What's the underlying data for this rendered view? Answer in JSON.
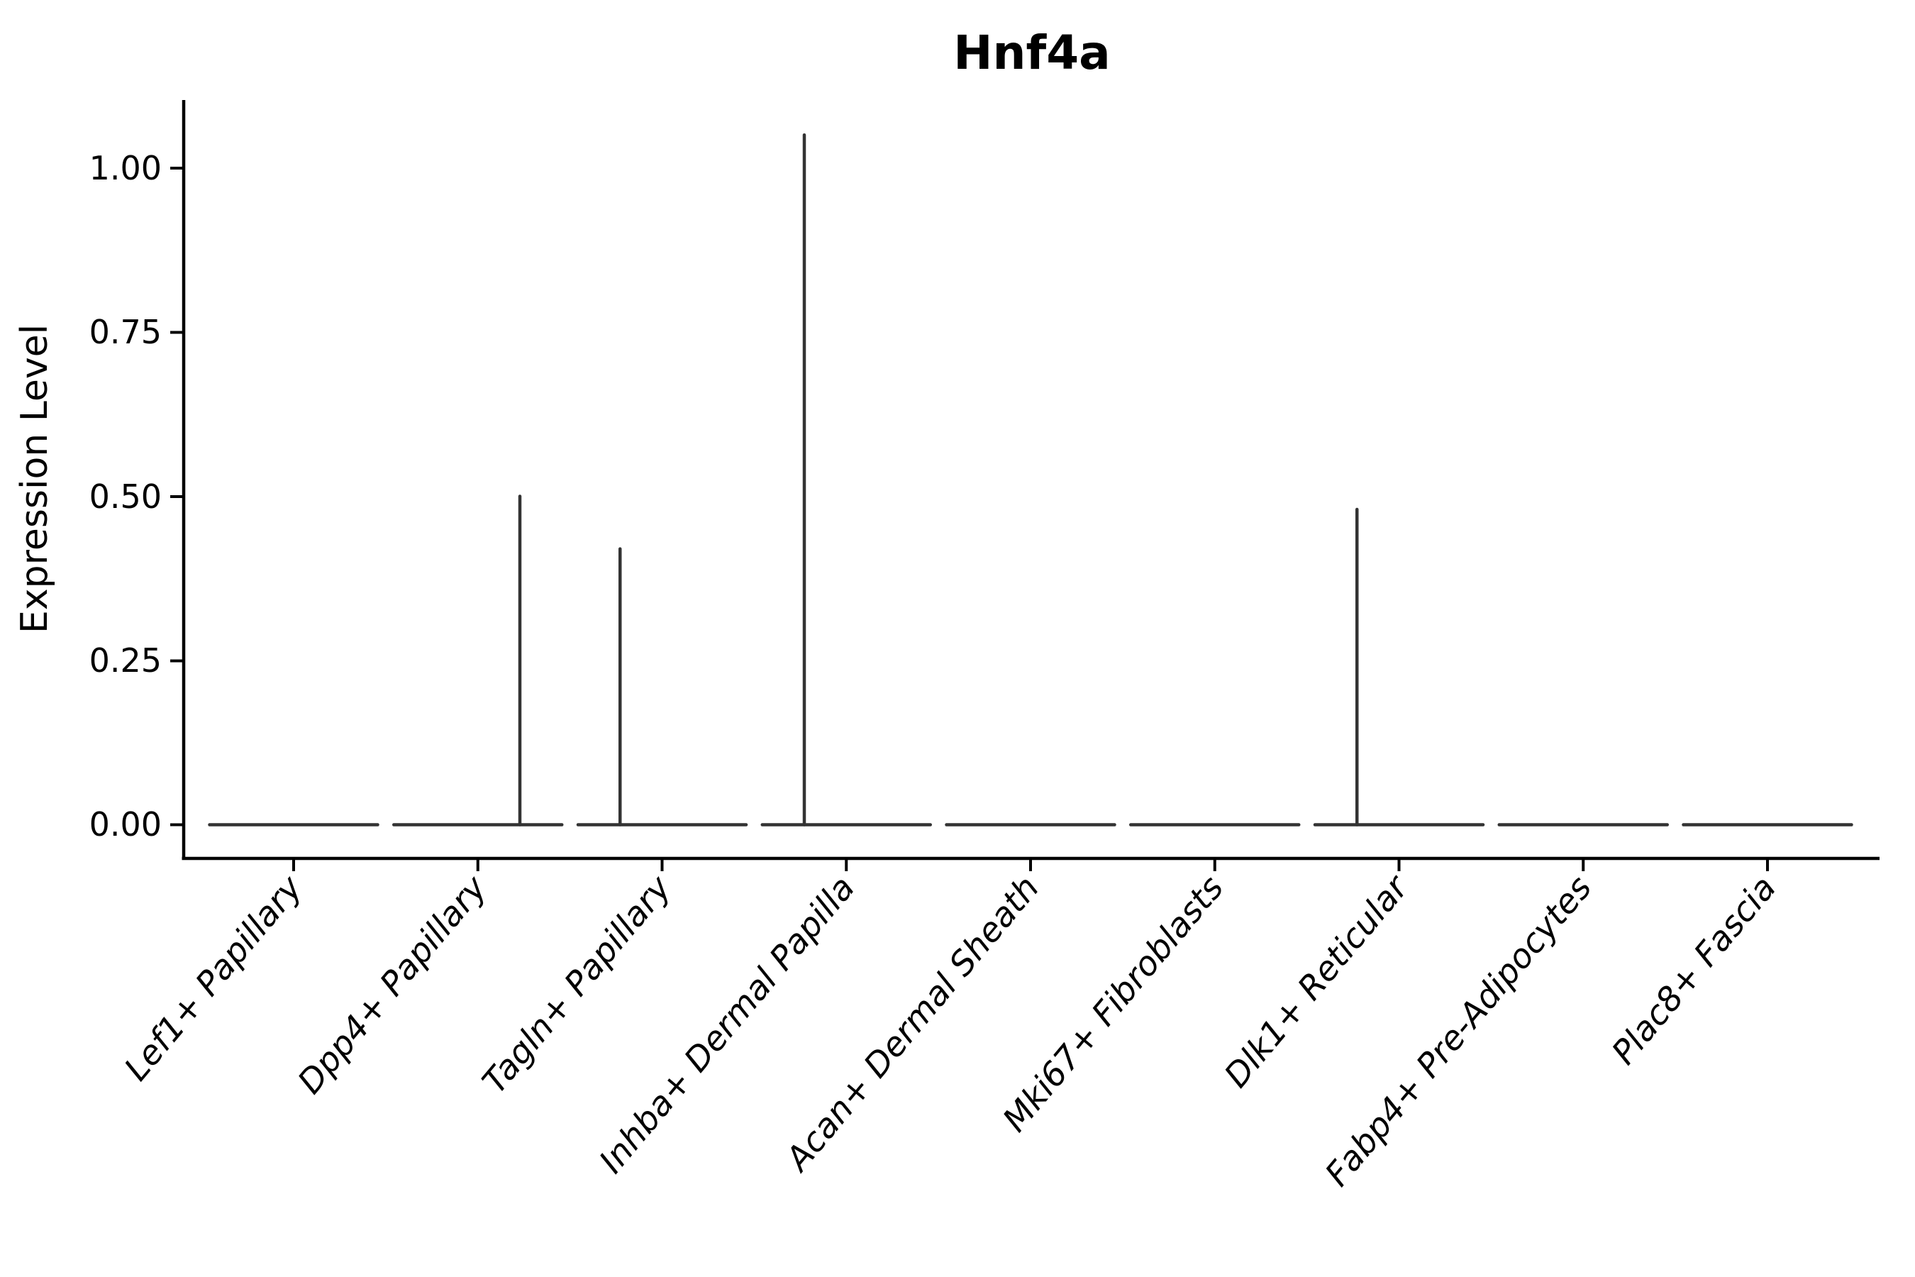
{
  "figure": {
    "title": "Hnf4a",
    "background_color": "#ffffff",
    "text_color": "#000000",
    "violin_color": "#333333",
    "spine_color": "#000000"
  },
  "chart_data": {
    "type": "violin",
    "title": "Hnf4a",
    "xlabel": "",
    "ylabel": "Expression Level",
    "ylim": [
      -0.05,
      1.1
    ],
    "yticks": [
      0,
      0.25,
      0.5,
      0.75,
      1
    ],
    "ytick_labels": [
      "0.00",
      "0.25",
      "0.50",
      "0.75",
      "1.00"
    ],
    "grid": false,
    "legend": "none",
    "categories": [
      "Lef1+ Papillary",
      "Dpp4+ Papillary",
      "Tagln+ Papillary",
      "Inhba+ Dermal Papilla",
      "Acan+ Dermal Sheath",
      "Mki67+ Fibroblasts",
      "Dlk1+ Reticular",
      "Fabp4+ Pre-Adipocytes",
      "Plac8+ Fascia"
    ],
    "violins": [
      {
        "category": "Lef1+ Papillary",
        "body": "flat at 0",
        "spike_value": null,
        "spike_offset_frac": 0
      },
      {
        "category": "Dpp4+ Papillary",
        "body": "flat at 0",
        "spike_value": 0.5,
        "spike_offset_frac": 0.5
      },
      {
        "category": "Tagln+ Papillary",
        "body": "flat at 0",
        "spike_value": 0.42,
        "spike_offset_frac": -0.5
      },
      {
        "category": "Inhba+ Dermal Papilla",
        "body": "flat at 0",
        "spike_value": 1.05,
        "spike_offset_frac": -0.5
      },
      {
        "category": "Acan+ Dermal Sheath",
        "body": "flat at 0",
        "spike_value": null,
        "spike_offset_frac": 0
      },
      {
        "category": "Mki67+ Fibroblasts",
        "body": "flat at 0",
        "spike_value": null,
        "spike_offset_frac": 0
      },
      {
        "category": "Dlk1+ Reticular",
        "body": "flat at 0",
        "spike_value": 0.48,
        "spike_offset_frac": -0.5
      },
      {
        "category": "Fabp4+ Pre-Adipocytes",
        "body": "flat at 0",
        "spike_value": null,
        "spike_offset_frac": 0
      },
      {
        "category": "Plac8+ Fascia",
        "body": "flat at 0",
        "spike_value": null,
        "spike_offset_frac": 0
      }
    ]
  }
}
